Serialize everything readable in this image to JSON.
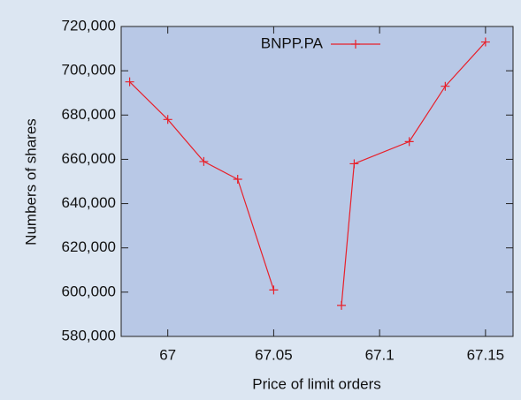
{
  "chart_data": {
    "type": "line",
    "x_label": "Price of limit orders",
    "y_label": "Numbers of shares",
    "x": [
      66.982,
      67.0,
      67.017,
      67.033,
      67.05,
      67.066,
      67.082,
      67.088,
      67.114,
      67.131,
      67.15
    ],
    "series": [
      {
        "name": "BNPP.PA",
        "color": "#e8202a",
        "values": [
          695000,
          678000,
          659000,
          651000,
          601000,
          null,
          594000,
          658000,
          668000,
          693000,
          713000
        ]
      }
    ],
    "xlim": [
      66.978,
      67.163
    ],
    "xticks": [
      67,
      67.05,
      67.1,
      67.15
    ],
    "ylim": [
      580000,
      720000
    ],
    "yticks": [
      {
        "value": 580000,
        "label": "580,000"
      },
      {
        "value": 600000,
        "label": "600,000"
      },
      {
        "value": 620000,
        "label": "620,000"
      },
      {
        "value": 640000,
        "label": "640,000"
      },
      {
        "value": 660000,
        "label": "660,000"
      },
      {
        "value": 680000,
        "label": "680,000"
      },
      {
        "value": 700000,
        "label": "700,000"
      },
      {
        "value": 720000,
        "label": "720,000"
      }
    ],
    "legend": "top"
  }
}
